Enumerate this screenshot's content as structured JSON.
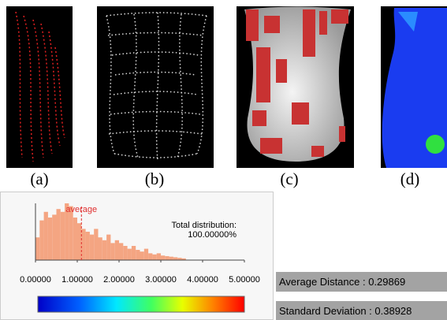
{
  "panels": [
    {
      "label": "(a)"
    },
    {
      "label": "(b)"
    },
    {
      "label": "(c)"
    },
    {
      "label": "(d)"
    }
  ],
  "chart_data": {
    "type": "histogram",
    "bins": [
      0,
      0.1,
      0.2,
      0.3,
      0.4,
      0.5,
      0.6,
      0.7,
      0.8,
      0.9,
      1.0,
      1.1,
      1.2,
      1.3,
      1.4,
      1.5,
      1.6,
      1.7,
      1.8,
      1.9,
      2.0,
      2.1,
      2.2,
      2.3,
      2.4,
      2.5,
      2.6,
      2.7,
      2.8,
      2.9,
      3.0,
      3.1,
      3.2,
      3.3,
      3.4,
      3.5,
      3.6
    ],
    "counts": [
      40,
      70,
      85,
      75,
      80,
      90,
      85,
      100,
      95,
      75,
      65,
      55,
      50,
      45,
      55,
      40,
      35,
      45,
      30,
      35,
      30,
      25,
      20,
      25,
      18,
      15,
      20,
      12,
      10,
      12,
      8,
      7,
      6,
      5,
      4,
      3
    ],
    "color": "#f4a582",
    "xlim": [
      0,
      5
    ],
    "ylim": [
      0,
      100
    ],
    "xticks": [
      {
        "value": 0,
        "label": "0.00000"
      },
      {
        "value": 1,
        "label": "1.00000"
      },
      {
        "value": 2,
        "label": "2.00000"
      },
      {
        "value": 3,
        "label": "3.00000"
      },
      {
        "value": 4,
        "label": "4.00000"
      },
      {
        "value": 5,
        "label": "5.00000"
      }
    ],
    "average": {
      "label": "average",
      "value": 1.1,
      "color": "#e03030"
    },
    "annotation": [
      "Total distribution:",
      "100.00000%"
    ]
  },
  "stats": [
    "Average Distance : 0.29869",
    "Standard Deviation : 0.38928"
  ]
}
